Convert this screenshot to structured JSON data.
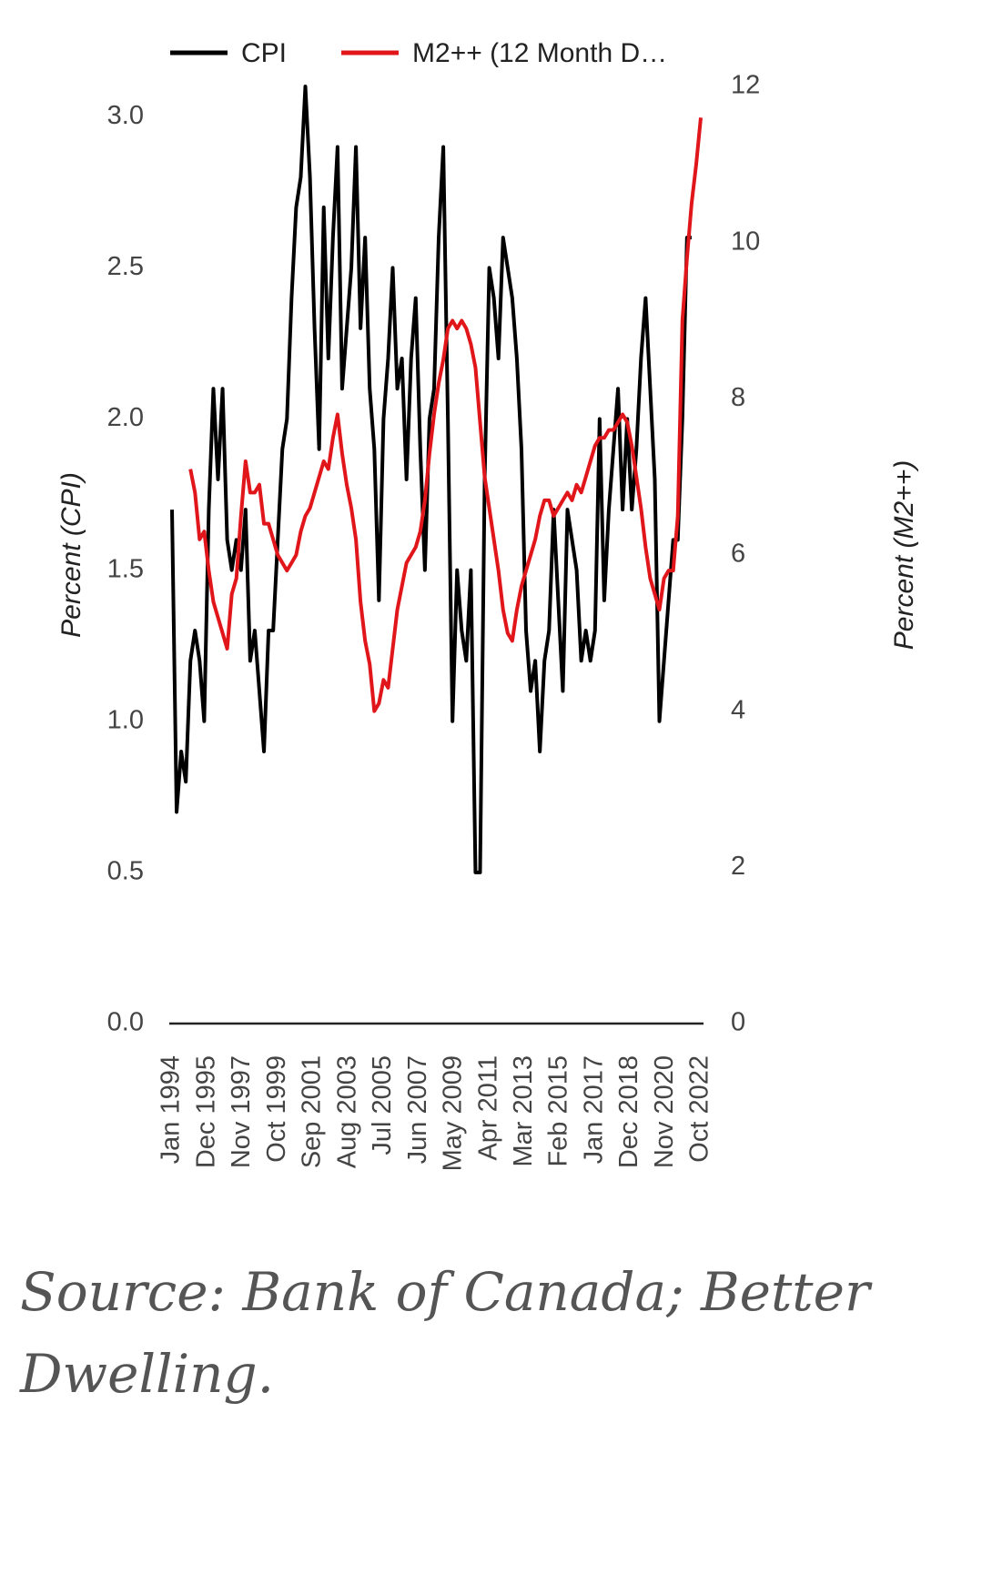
{
  "chart_data": {
    "type": "line",
    "legend": "top",
    "x": [
      "1994-01",
      "1994-04",
      "1994-07",
      "1994-10",
      "1995-01",
      "1995-04",
      "1995-07",
      "1995-10",
      "1996-01",
      "1996-04",
      "1996-07",
      "1996-10",
      "1997-01",
      "1997-04",
      "1997-07",
      "1997-10",
      "1998-01",
      "1998-04",
      "1998-07",
      "1998-10",
      "1999-01",
      "1999-04",
      "1999-07",
      "1999-10",
      "2000-01",
      "2000-04",
      "2000-07",
      "2000-10",
      "2001-01",
      "2001-04",
      "2001-07",
      "2001-10",
      "2002-01",
      "2002-04",
      "2002-07",
      "2002-10",
      "2003-01",
      "2003-04",
      "2003-07",
      "2003-10",
      "2004-01",
      "2004-04",
      "2004-07",
      "2004-10",
      "2005-01",
      "2005-04",
      "2005-07",
      "2005-10",
      "2006-01",
      "2006-04",
      "2006-07",
      "2006-10",
      "2007-01",
      "2007-04",
      "2007-07",
      "2007-10",
      "2008-01",
      "2008-04",
      "2008-07",
      "2008-10",
      "2009-01",
      "2009-04",
      "2009-07",
      "2009-10",
      "2010-01",
      "2010-04",
      "2010-07",
      "2010-10",
      "2011-01",
      "2011-04",
      "2011-07",
      "2011-10",
      "2012-01",
      "2012-04",
      "2012-07",
      "2012-10",
      "2013-01",
      "2013-04",
      "2013-07",
      "2013-10",
      "2014-01",
      "2014-04",
      "2014-07",
      "2014-10",
      "2015-01",
      "2015-04",
      "2015-07",
      "2015-10",
      "2016-01",
      "2016-04",
      "2016-07",
      "2016-10",
      "2017-01",
      "2017-04",
      "2017-07",
      "2017-10",
      "2018-01",
      "2018-04",
      "2018-07",
      "2018-10",
      "2019-01",
      "2019-04",
      "2019-07",
      "2019-10",
      "2020-01",
      "2020-04",
      "2020-07",
      "2020-10",
      "2021-01",
      "2021-04",
      "2021-07",
      "2021-10",
      "2022-01",
      "2022-04",
      "2022-07",
      "2022-10"
    ],
    "xticks": [
      {
        "value": "1994-01",
        "label": "Jan 1994"
      },
      {
        "value": "1995-12",
        "label": "Dec 1995"
      },
      {
        "value": "1997-11",
        "label": "Nov 1997"
      },
      {
        "value": "1999-10",
        "label": "Oct 1999"
      },
      {
        "value": "2001-09",
        "label": "Sep 2001"
      },
      {
        "value": "2003-08",
        "label": "Aug 2003"
      },
      {
        "value": "2005-07",
        "label": "Jul 2005"
      },
      {
        "value": "2007-06",
        "label": "Jun 2007"
      },
      {
        "value": "2009-05",
        "label": "May 2009"
      },
      {
        "value": "2011-04",
        "label": "Apr 2011"
      },
      {
        "value": "2013-03",
        "label": "Mar 2013"
      },
      {
        "value": "2015-02",
        "label": "Feb 2015"
      },
      {
        "value": "2017-01",
        "label": "Jan 2017"
      },
      {
        "value": "2018-12",
        "label": "Dec 2018"
      },
      {
        "value": "2020-11",
        "label": "Nov 2020"
      },
      {
        "value": "2022-10",
        "label": "Oct 2022"
      }
    ],
    "ylabel": "Percent (CPI)",
    "y2label": "Percent (M2++)",
    "ylim": [
      0,
      3.1
    ],
    "yticks": [
      {
        "value": 0,
        "label": "0.0"
      },
      0.5,
      {
        "value": 1,
        "label": "1.0"
      },
      1.5,
      {
        "value": 2,
        "label": "2.0"
      },
      2.5,
      {
        "value": 3,
        "label": "3.0"
      }
    ],
    "y2lim": [
      0,
      12
    ],
    "y2ticks": [
      0,
      2,
      4,
      6,
      8,
      10,
      12
    ],
    "series": [
      {
        "name": "CPI",
        "color": "#000000",
        "values": [
          1.7,
          0.7,
          0.9,
          0.8,
          1.2,
          1.3,
          1.2,
          1.0,
          1.7,
          2.1,
          1.8,
          2.1,
          1.6,
          1.5,
          1.6,
          1.5,
          1.7,
          1.2,
          1.3,
          1.1,
          0.9,
          1.3,
          1.3,
          1.6,
          1.9,
          2.0,
          2.4,
          2.7,
          2.8,
          3.1,
          2.8,
          2.3,
          1.9,
          2.7,
          2.2,
          2.6,
          2.9,
          2.1,
          2.3,
          2.5,
          2.9,
          2.3,
          2.6,
          2.1,
          1.9,
          1.4,
          2.0,
          2.2,
          2.5,
          2.1,
          2.2,
          1.8,
          2.2,
          2.4,
          1.9,
          1.5,
          2.0,
          2.1,
          2.6,
          2.9,
          2.0,
          1.0,
          1.5,
          1.3,
          1.2,
          1.5,
          0.5,
          0.5,
          1.8,
          2.5,
          2.4,
          2.2,
          2.6,
          2.5,
          2.4,
          2.2,
          1.9,
          1.3,
          1.1,
          1.2,
          0.9,
          1.2,
          1.3,
          1.7,
          1.4,
          1.1,
          1.7,
          1.6,
          1.5,
          1.2,
          1.3,
          1.2,
          1.3,
          2.0,
          1.4,
          1.7,
          1.9,
          2.1,
          1.7,
          2.0,
          1.7,
          1.9,
          2.2,
          2.4,
          2.1,
          1.8,
          1.0,
          1.2,
          1.4,
          1.6,
          1.6,
          2.0,
          2.6,
          2.6,
          null,
          null
        ]
      },
      {
        "name": "M2++ (12 Month D…",
        "color": "#e0161b",
        "axis": "y2",
        "values": [
          null,
          null,
          null,
          null,
          7.1,
          6.8,
          6.2,
          6.3,
          5.8,
          5.4,
          5.2,
          5.0,
          4.8,
          5.5,
          5.7,
          6.5,
          7.2,
          6.8,
          6.8,
          6.9,
          6.4,
          6.4,
          6.2,
          6.0,
          5.9,
          5.8,
          5.9,
          6.0,
          6.3,
          6.5,
          6.6,
          6.8,
          7.0,
          7.2,
          7.1,
          7.5,
          7.8,
          7.3,
          6.9,
          6.6,
          6.2,
          5.4,
          4.9,
          4.6,
          4.0,
          4.1,
          4.4,
          4.3,
          4.8,
          5.3,
          5.6,
          5.9,
          6.0,
          6.1,
          6.3,
          6.7,
          7.3,
          7.8,
          8.2,
          8.5,
          8.9,
          9.0,
          8.9,
          9.0,
          8.9,
          8.7,
          8.4,
          7.7,
          7.0,
          6.6,
          6.2,
          5.8,
          5.3,
          5.0,
          4.9,
          5.3,
          5.6,
          5.8,
          6.0,
          6.2,
          6.5,
          6.7,
          6.7,
          6.5,
          6.6,
          6.7,
          6.8,
          6.7,
          6.9,
          6.8,
          7.0,
          7.2,
          7.4,
          7.5,
          7.5,
          7.6,
          7.6,
          7.7,
          7.8,
          7.7,
          7.4,
          7.0,
          6.6,
          6.1,
          5.7,
          5.5,
          5.3,
          5.7,
          5.8,
          5.8,
          6.5,
          9.0,
          9.8,
          10.5,
          11.0,
          11.6
        ]
      }
    ]
  },
  "caption": "Source: Bank of Canada; Better Dwelling."
}
